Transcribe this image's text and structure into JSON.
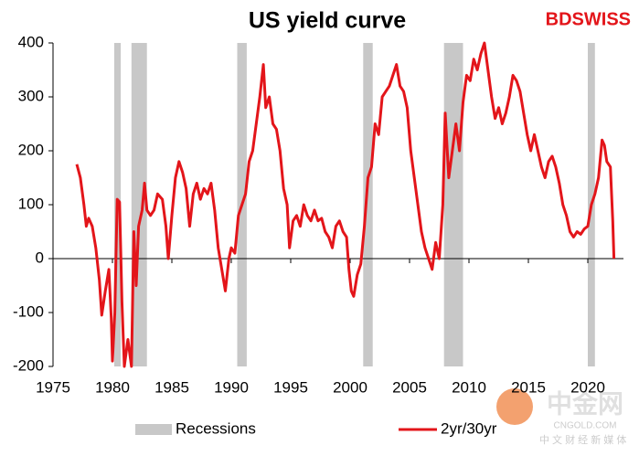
{
  "chart_data": {
    "type": "line",
    "title": "US yield curve",
    "brand": "BDSWISS",
    "watermark": {
      "name": "中金网",
      "site": "CNGOLD.COM",
      "tagline": "中 文 财 经 新 媒 体"
    },
    "x": [
      1977.0,
      1977.3,
      1977.6,
      1977.8,
      1978.0,
      1978.3,
      1978.6,
      1978.9,
      1979.1,
      1979.4,
      1979.7,
      1979.9,
      1980.0,
      1980.2,
      1980.4,
      1980.6,
      1980.8,
      1981.0,
      1981.3,
      1981.6,
      1981.8,
      1982.0,
      1982.2,
      1982.5,
      1982.7,
      1982.9,
      1983.2,
      1983.5,
      1983.8,
      1984.2,
      1984.5,
      1984.7,
      1985.0,
      1985.3,
      1985.6,
      1985.9,
      1986.2,
      1986.5,
      1986.8,
      1987.1,
      1987.4,
      1987.7,
      1988.0,
      1988.3,
      1988.6,
      1988.9,
      1989.2,
      1989.5,
      1989.8,
      1990.0,
      1990.3,
      1990.6,
      1990.9,
      1991.2,
      1991.5,
      1991.8,
      1992.1,
      1992.4,
      1992.7,
      1992.9,
      1993.2,
      1993.5,
      1993.8,
      1994.1,
      1994.4,
      1994.7,
      1994.9,
      1995.2,
      1995.5,
      1995.8,
      1996.1,
      1996.4,
      1996.7,
      1997.0,
      1997.3,
      1997.6,
      1997.9,
      1998.2,
      1998.5,
      1998.8,
      1999.1,
      1999.4,
      1999.7,
      1999.9,
      2000.1,
      2000.3,
      2000.6,
      2000.9,
      2001.2,
      2001.5,
      2001.8,
      2002.1,
      2002.4,
      2002.7,
      2003.0,
      2003.3,
      2003.6,
      2003.9,
      2004.2,
      2004.5,
      2004.8,
      2005.1,
      2005.4,
      2005.7,
      2006.0,
      2006.3,
      2006.6,
      2006.9,
      2007.2,
      2007.5,
      2007.8,
      2008.0,
      2008.3,
      2008.6,
      2008.9,
      2009.2,
      2009.5,
      2009.8,
      2010.1,
      2010.4,
      2010.7,
      2011.0,
      2011.3,
      2011.6,
      2011.9,
      2012.2,
      2012.5,
      2012.8,
      2013.1,
      2013.4,
      2013.7,
      2014.0,
      2014.3,
      2014.6,
      2014.9,
      2015.2,
      2015.5,
      2015.8,
      2016.1,
      2016.4,
      2016.7,
      2017.0,
      2017.3,
      2017.6,
      2017.9,
      2018.2,
      2018.5,
      2018.8,
      2019.1,
      2019.4,
      2019.7,
      2020.0,
      2020.3,
      2020.6,
      2020.9,
      2021.2,
      2021.4,
      2021.6,
      2021.9,
      2022.1,
      2022.2
    ],
    "series": [
      {
        "name": "2yr/30yr",
        "color": "#e3151a",
        "values": [
          175,
          150,
          100,
          60,
          75,
          60,
          20,
          -40,
          -105,
          -60,
          -20,
          -110,
          -190,
          -100,
          110,
          105,
          -80,
          -200,
          -150,
          -200,
          50,
          -50,
          60,
          90,
          140,
          90,
          80,
          90,
          120,
          110,
          60,
          0,
          80,
          150,
          180,
          160,
          130,
          60,
          120,
          140,
          110,
          130,
          120,
          140,
          90,
          20,
          -20,
          -60,
          0,
          20,
          10,
          80,
          100,
          120,
          180,
          200,
          250,
          300,
          360,
          280,
          300,
          250,
          240,
          200,
          130,
          100,
          20,
          70,
          80,
          60,
          100,
          80,
          70,
          90,
          70,
          75,
          50,
          40,
          20,
          60,
          70,
          50,
          40,
          -20,
          -60,
          -70,
          -30,
          -10,
          60,
          150,
          170,
          250,
          230,
          300,
          310,
          320,
          340,
          360,
          320,
          310,
          280,
          200,
          150,
          100,
          50,
          20,
          0,
          -20,
          30,
          0,
          100,
          270,
          150,
          200,
          250,
          200,
          290,
          340,
          330,
          370,
          350,
          380,
          400,
          350,
          300,
          260,
          280,
          250,
          270,
          300,
          340,
          330,
          310,
          270,
          230,
          200,
          230,
          200,
          170,
          150,
          180,
          190,
          170,
          140,
          100,
          80,
          50,
          40,
          50,
          45,
          55,
          60,
          100,
          120,
          150,
          220,
          210,
          180,
          170,
          70,
          0
        ]
      }
    ],
    "recessions": {
      "name": "Recessions",
      "color": "#c8c8c8",
      "ranges": [
        [
          1980.15,
          1980.7
        ],
        [
          1981.6,
          1982.9
        ],
        [
          1990.5,
          1991.3
        ],
        [
          2001.1,
          2001.9
        ],
        [
          2007.9,
          2009.5
        ],
        [
          2020.0,
          2020.6
        ]
      ]
    },
    "xlim": [
      1975,
      2023
    ],
    "xticks": [
      1975,
      1980,
      1985,
      1990,
      1995,
      2000,
      2005,
      2010,
      2015,
      2020
    ],
    "ylim": [
      -200,
      400
    ],
    "yticks": [
      -200,
      -100,
      0,
      100,
      200,
      300,
      400
    ],
    "grid": false,
    "legend": "bottom"
  }
}
